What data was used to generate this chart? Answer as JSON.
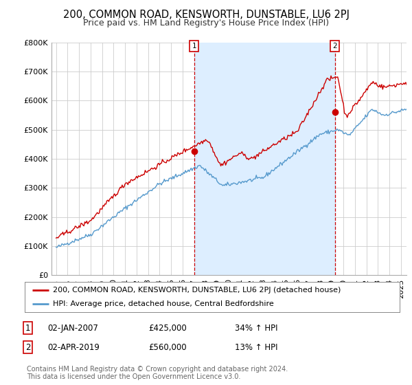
{
  "title": "200, COMMON ROAD, KENSWORTH, DUNSTABLE, LU6 2PJ",
  "subtitle": "Price paid vs. HM Land Registry's House Price Index (HPI)",
  "ylabel_ticks": [
    "£0",
    "£100K",
    "£200K",
    "£300K",
    "£400K",
    "£500K",
    "£600K",
    "£700K",
    "£800K"
  ],
  "ytick_vals": [
    0,
    100000,
    200000,
    300000,
    400000,
    500000,
    600000,
    700000,
    800000
  ],
  "ylim": [
    0,
    800000
  ],
  "xlim_start": 1994.6,
  "xlim_end": 2025.5,
  "sale1_x": 2007.01,
  "sale1_y": 425000,
  "sale1_label": "1",
  "sale2_x": 2019.25,
  "sale2_y": 560000,
  "sale2_label": "2",
  "vline1_x": 2007.01,
  "vline2_x": 2019.25,
  "red_line_color": "#cc0000",
  "blue_line_color": "#5599cc",
  "shade_color": "#ddeeff",
  "vline_color": "#cc0000",
  "grid_color": "#cccccc",
  "background_color": "#ffffff",
  "legend_line1": "200, COMMON ROAD, KENSWORTH, DUNSTABLE, LU6 2PJ (detached house)",
  "legend_line2": "HPI: Average price, detached house, Central Bedfordshire",
  "footnote": "Contains HM Land Registry data © Crown copyright and database right 2024.\nThis data is licensed under the Open Government Licence v3.0.",
  "title_fontsize": 10.5,
  "subtitle_fontsize": 9,
  "tick_fontsize": 8,
  "legend_fontsize": 8,
  "annotation_fontsize": 8.5,
  "footnote_fontsize": 7
}
